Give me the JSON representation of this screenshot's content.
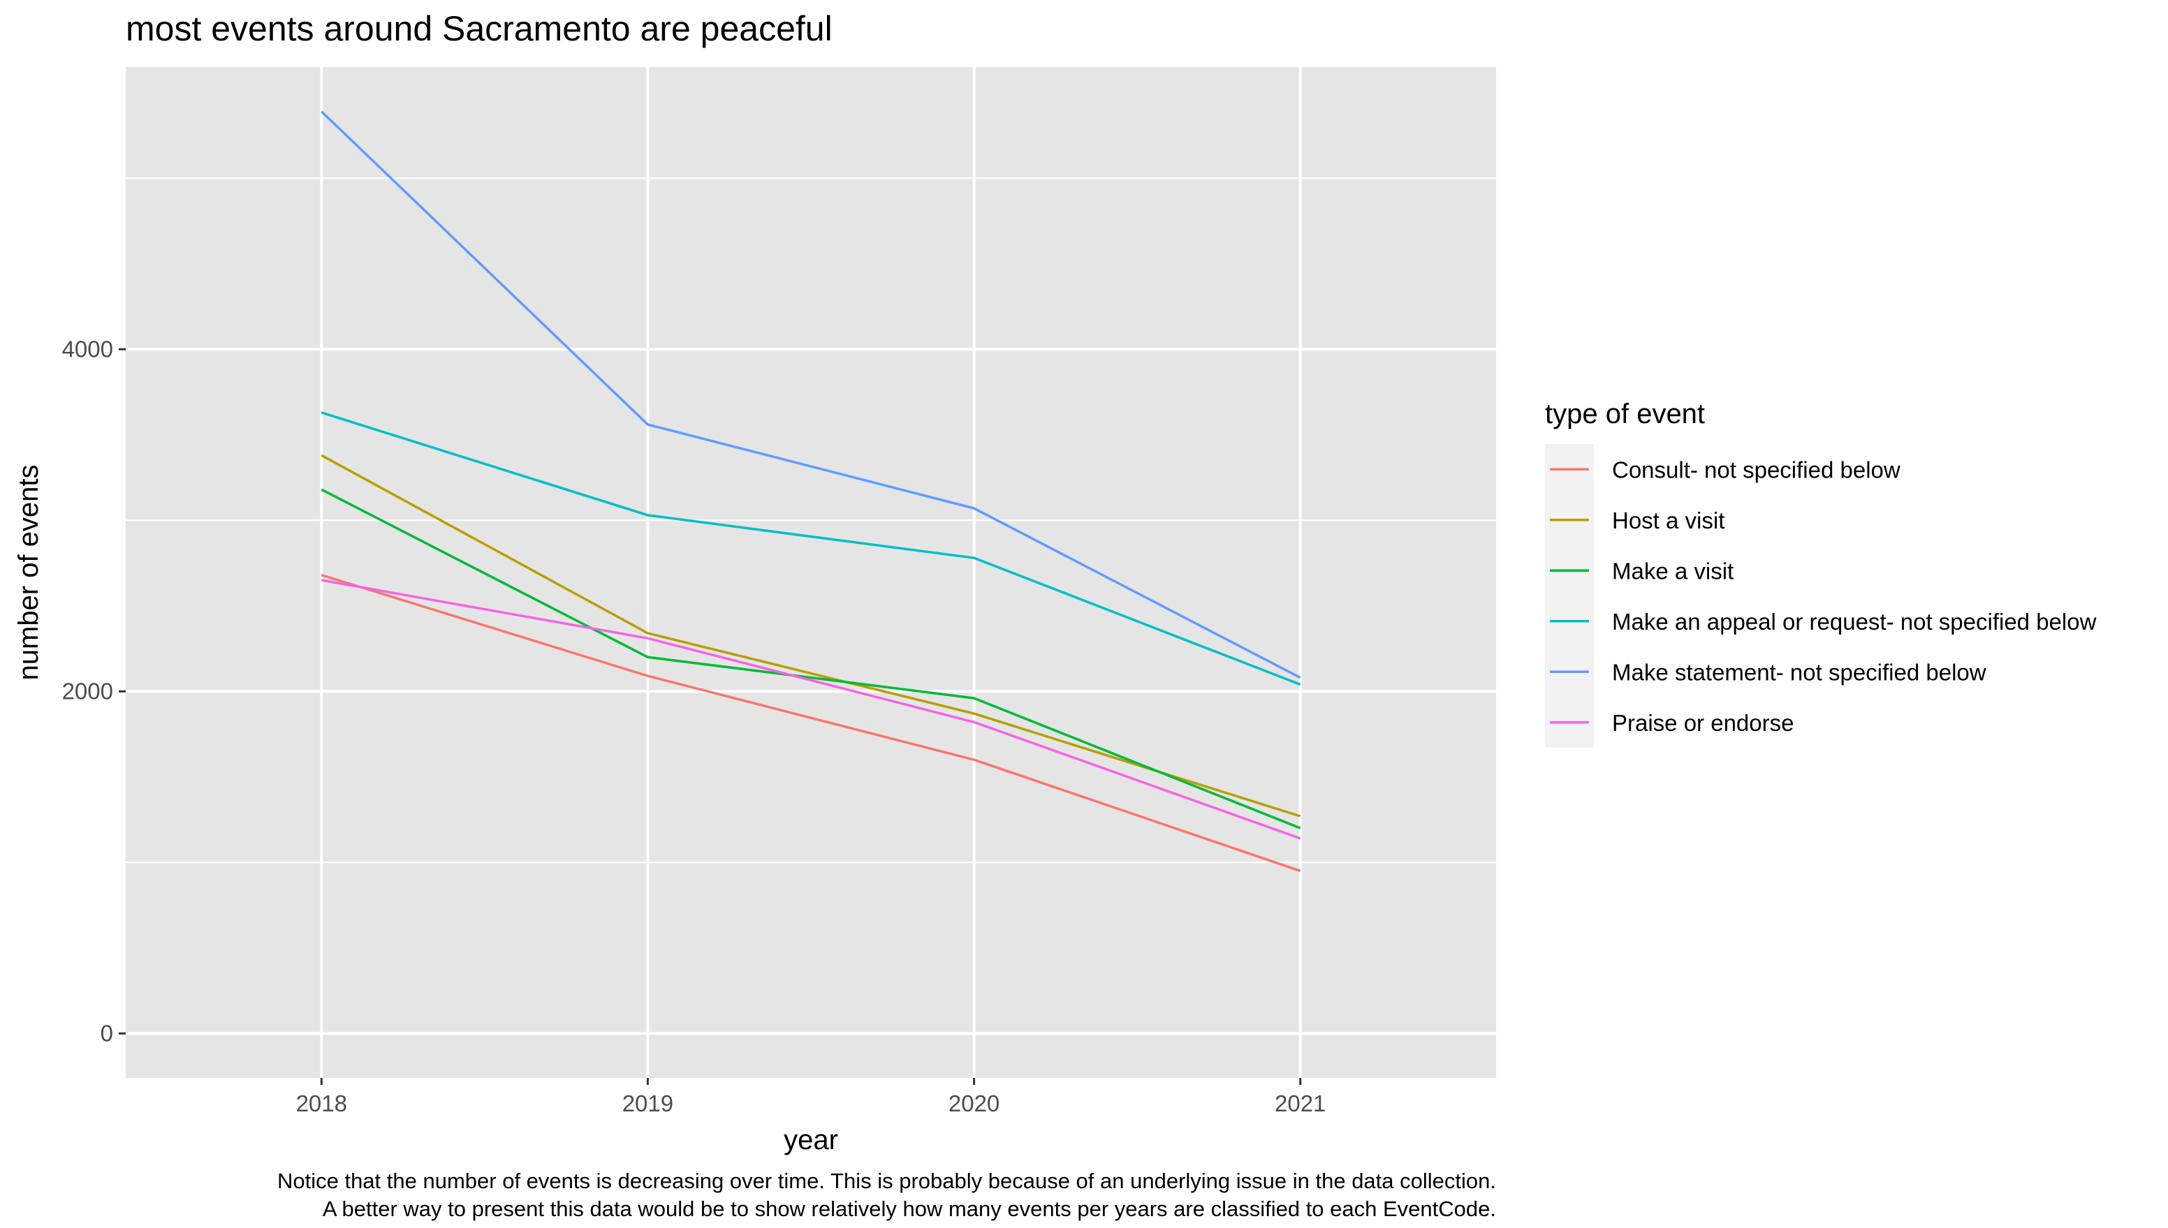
{
  "chart_data": {
    "type": "line",
    "title": "most events around Sacramento are peaceful",
    "xlabel": "year",
    "ylabel": "number of events",
    "x": [
      2018,
      2019,
      2020,
      2021
    ],
    "xlim": [
      2017.4,
      2021.6
    ],
    "ylim": [
      -260,
      5650
    ],
    "y_ticks": [
      0,
      2000,
      4000
    ],
    "y_minor_ticks": [
      1000,
      3000,
      5000
    ],
    "grid": true,
    "panel_background": "#e5e5e5",
    "grid_color": "#ffffff",
    "legend": {
      "title": "type of event",
      "placement": "right"
    },
    "series": [
      {
        "name": "Consult- not specified below",
        "color": "#F8766D",
        "values": [
          2680,
          2090,
          1600,
          950
        ]
      },
      {
        "name": "Host a visit",
        "color": "#B79F00",
        "values": [
          3380,
          2340,
          1870,
          1270
        ]
      },
      {
        "name": "Make a visit",
        "color": "#00BA38",
        "values": [
          3180,
          2200,
          1960,
          1200
        ]
      },
      {
        "name": "Make an appeal or request- not specified below",
        "color": "#00BFC4",
        "values": [
          3630,
          3030,
          2780,
          2040
        ]
      },
      {
        "name": "Make statement- not specified below",
        "color": "#619CFF",
        "values": [
          5390,
          3560,
          3070,
          2080
        ]
      },
      {
        "name": "Praise or endorse",
        "color": "#F564E3",
        "values": [
          2650,
          2310,
          1820,
          1140
        ]
      }
    ],
    "caption": [
      "Notice that the number of events is decreasing over time. This is probably because of an underlying issue in the data collection.",
      "A better way to present this data would be to show relatively how many events per years are classified to each EventCode."
    ]
  }
}
